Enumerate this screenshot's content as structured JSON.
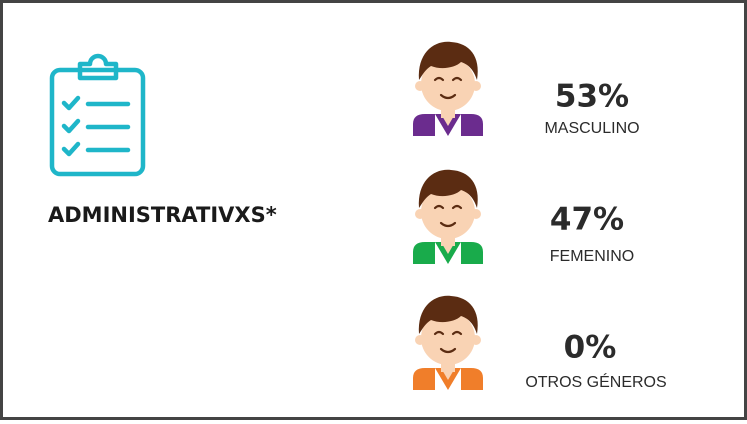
{
  "title": "ADMINISTRATIVXS*",
  "items": [
    {
      "percent": "53%",
      "label": "MASCULINO"
    },
    {
      "percent": "47%",
      "label": "FEMENINO"
    },
    {
      "percent": "0%",
      "label": "OTROS GÉNEROS"
    }
  ]
}
